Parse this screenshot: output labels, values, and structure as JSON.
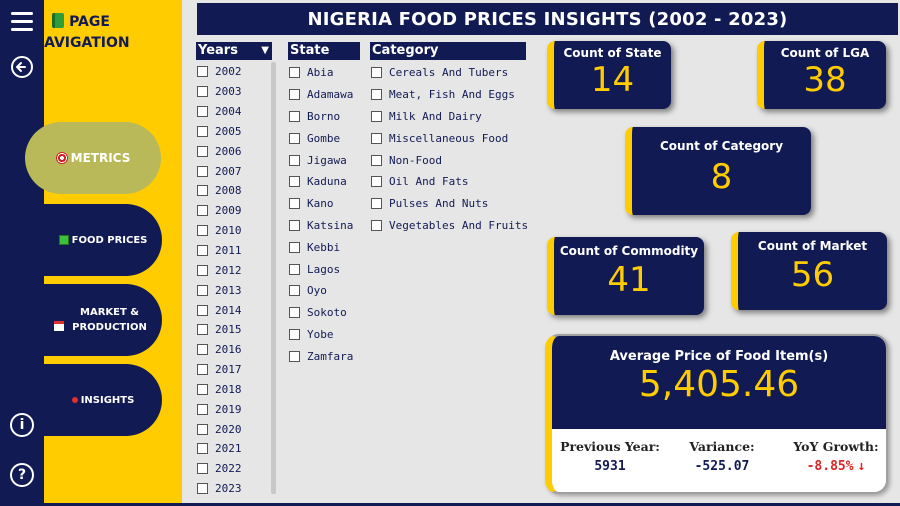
{
  "header": {
    "title": "NIGERIA FOOD PRICES INSIGHTS (2002 - 2023)"
  },
  "rail": {
    "icons": [
      "hamburger-menu-icon",
      "back-arrow-icon",
      "info-icon",
      "help-icon"
    ],
    "info_glyph": "i",
    "help_glyph": "?"
  },
  "navigation": {
    "title": "PAGE NAVIGATION",
    "items": [
      {
        "label": "METRICS",
        "icon": "target-icon"
      },
      {
        "label": "FOOD PRICES",
        "icon": "chart-icon"
      },
      {
        "label": "MARKET & PRODUCTION",
        "icon": "calendar-icon"
      },
      {
        "label": "INSIGHTS",
        "icon": "pin-icon"
      }
    ]
  },
  "slicers": {
    "years": {
      "header": "Years",
      "items": [
        "2002",
        "2003",
        "2004",
        "2005",
        "2006",
        "2007",
        "2008",
        "2009",
        "2010",
        "2011",
        "2012",
        "2013",
        "2014",
        "2015",
        "2016",
        "2017",
        "2018",
        "2019",
        "2020",
        "2021",
        "2022",
        "2023"
      ]
    },
    "state": {
      "header": "State",
      "items": [
        "Abia",
        "Adamawa",
        "Borno",
        "Gombe",
        "Jigawa",
        "Kaduna",
        "Kano",
        "Katsina",
        "Kebbi",
        "Lagos",
        "Oyo",
        "Sokoto",
        "Yobe",
        "Zamfara"
      ]
    },
    "category": {
      "header": "Category",
      "items": [
        "Cereals And Tubers",
        "Meat, Fish And Eggs",
        "Milk And Dairy",
        "Miscellaneous Food",
        "Non-Food",
        "Oil And Fats",
        "Pulses And Nuts",
        "Vegetables And Fruits"
      ]
    }
  },
  "kpis": {
    "count_state": {
      "label": "Count of State",
      "value": "14"
    },
    "count_lga": {
      "label": "Count of LGA",
      "value": "38"
    },
    "count_category": {
      "label": "Count of Category",
      "value": "8"
    },
    "count_commodity": {
      "label": "Count of Commodity",
      "value": "41"
    },
    "count_market": {
      "label": "Count of Market",
      "value": "56"
    }
  },
  "average_price": {
    "label": "Average Price of Food Item(s)",
    "value": "5,405.46",
    "previous_year": {
      "label": "Previous Year:",
      "value": "5931"
    },
    "variance": {
      "label": "Variance:",
      "value": "-525.07"
    },
    "yoy_growth": {
      "label": "YoY Growth:",
      "value": "-8.85%",
      "arrow": "↓"
    }
  },
  "colors": {
    "navy": "#121a54",
    "yellow": "#ffcc00",
    "active_nav": "#b9b95a",
    "negative": "#e02424",
    "canvas": "#e6e6e6"
  }
}
